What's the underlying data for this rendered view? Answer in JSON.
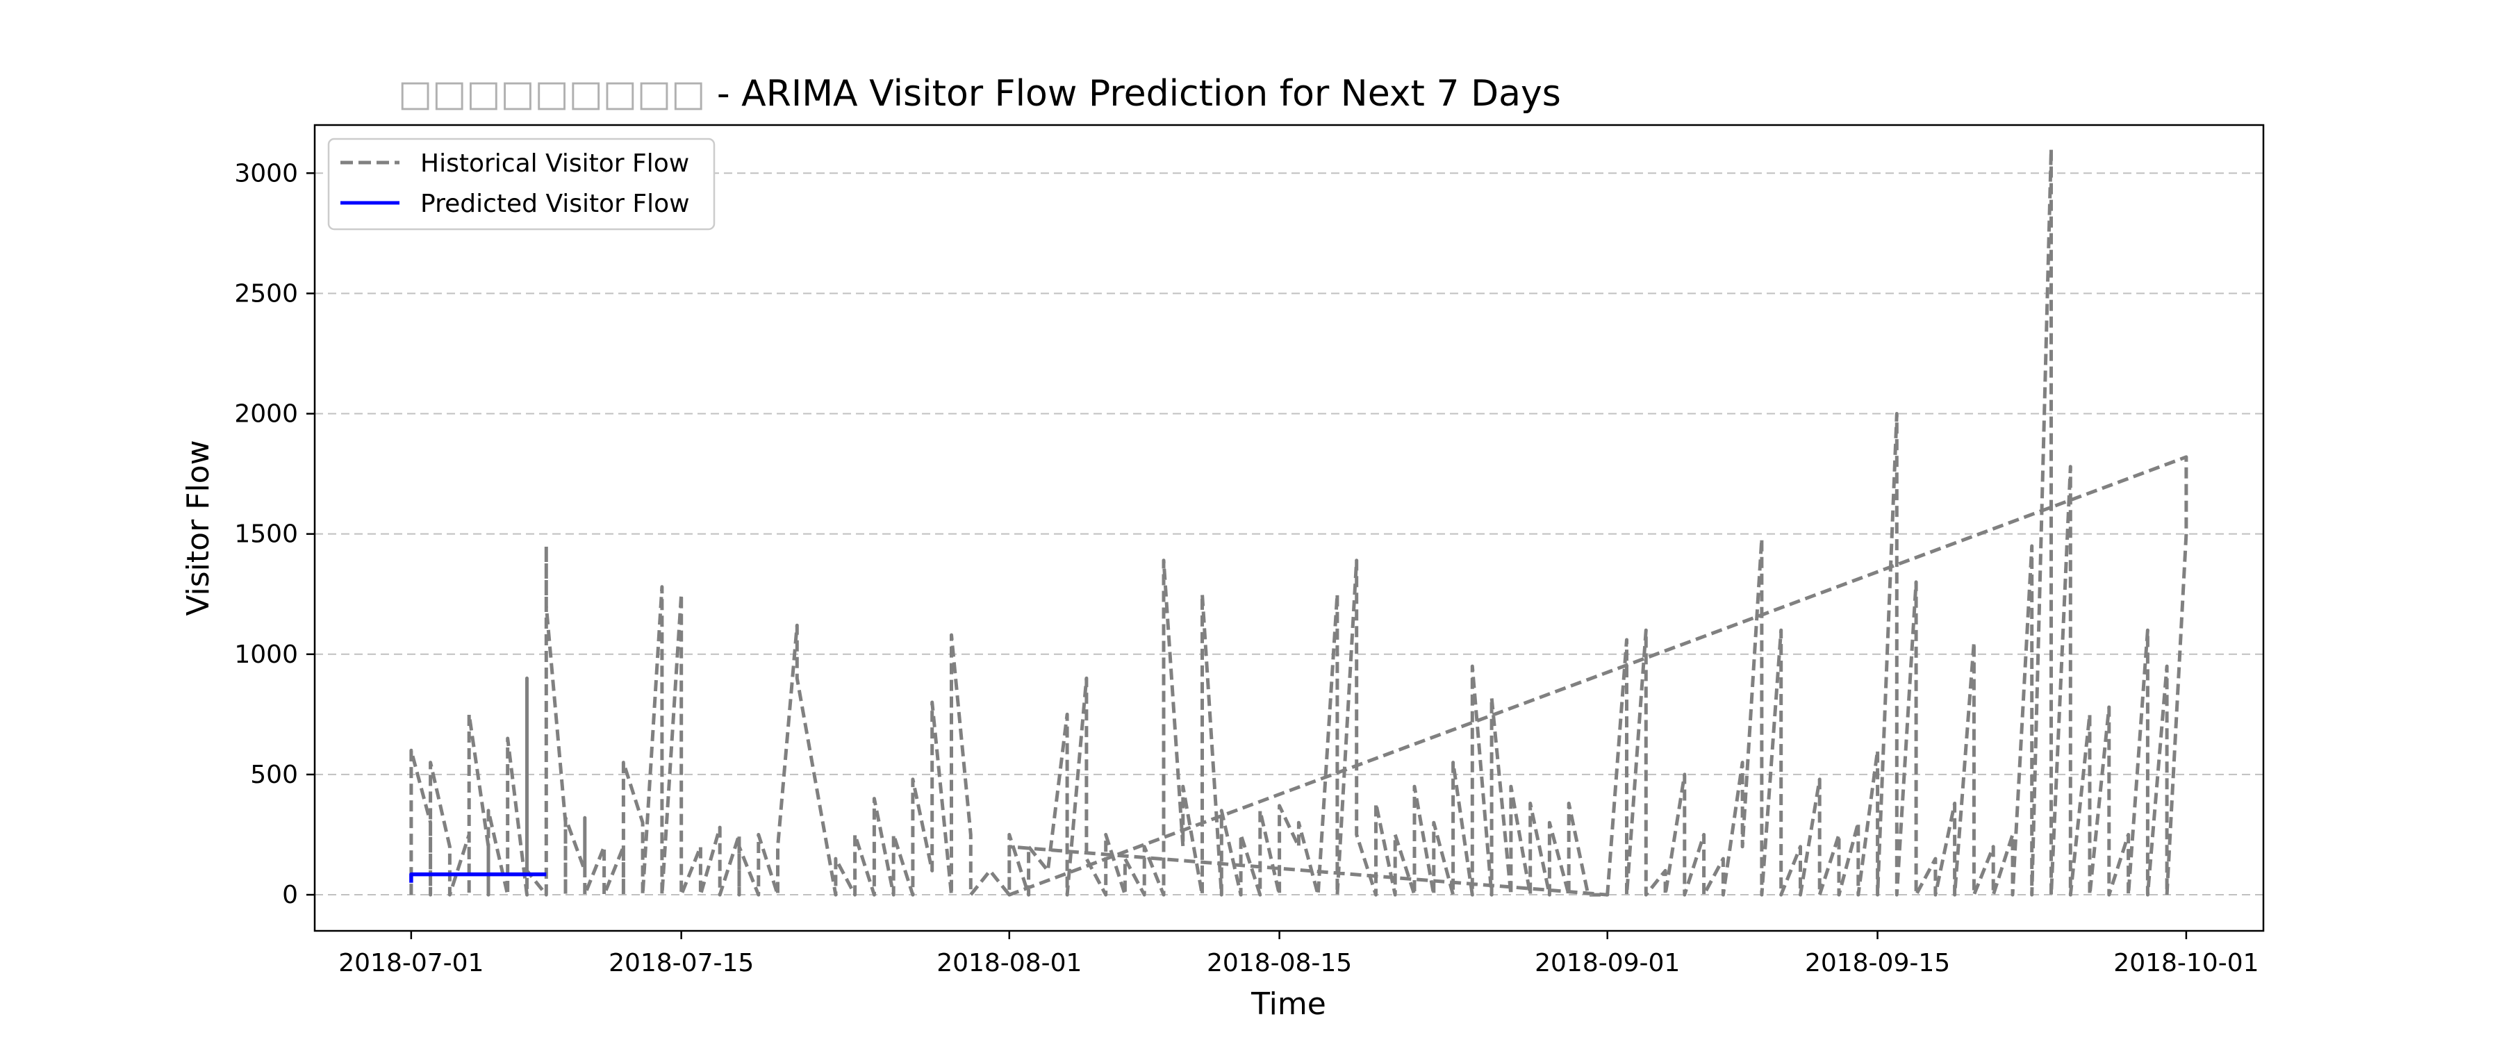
{
  "chart_data": {
    "type": "line",
    "title_glyphs": "□□□□□□□□□",
    "title_suffix": " - ARIMA Visitor Flow Prediction for Next 7 Days",
    "xlabel": "Time",
    "ylabel": "Visitor Flow",
    "x_axis_type": "date",
    "xlim": [
      "2018-06-26",
      "2018-10-05"
    ],
    "ylim": [
      -150,
      3200
    ],
    "x_ticks": [
      "2018-07-01",
      "2018-07-15",
      "2018-08-01",
      "2018-08-15",
      "2018-09-01",
      "2018-09-15",
      "2018-10-01"
    ],
    "y_ticks": [
      0,
      500,
      1000,
      1500,
      2000,
      2500,
      3000
    ],
    "grid": {
      "y": true,
      "x": false,
      "style": "dashed"
    },
    "legend_position": "top-left",
    "series": [
      {
        "name": "Historical Visitor Flow",
        "color": "#808080",
        "style": "dashed",
        "points": [
          [
            "2018-07-01",
            0
          ],
          [
            "2018-07-01",
            380
          ],
          [
            "2018-07-01",
            600
          ],
          [
            "2018-07-02",
            300
          ],
          [
            "2018-07-02",
            0
          ],
          [
            "2018-07-02",
            300
          ],
          [
            "2018-07-02",
            550
          ],
          [
            "2018-07-03",
            200
          ],
          [
            "2018-07-03",
            0
          ],
          [
            "2018-07-04",
            250
          ],
          [
            "2018-07-04",
            0
          ],
          [
            "2018-07-04",
            400
          ],
          [
            "2018-07-04",
            750
          ],
          [
            "2018-07-05",
            200
          ],
          [
            "2018-07-05",
            0
          ],
          [
            "2018-07-05",
            350
          ],
          [
            "2018-07-06",
            0
          ],
          [
            "2018-07-06",
            400
          ],
          [
            "2018-07-06",
            650
          ],
          [
            "2018-07-07",
            0
          ],
          [
            "2018-07-07",
            300
          ],
          [
            "2018-07-07",
            900
          ],
          [
            "2018-07-07",
            100
          ],
          [
            "2018-07-08",
            0
          ],
          [
            "2018-07-08",
            1450
          ],
          [
            "2018-07-08",
            1200
          ],
          [
            "2018-07-09",
            300
          ],
          [
            "2018-07-09",
            0
          ],
          [
            "2018-07-09",
            320
          ],
          [
            "2018-07-10",
            100
          ],
          [
            "2018-07-10",
            320
          ],
          [
            "2018-07-10",
            0
          ],
          [
            "2018-07-11",
            200
          ],
          [
            "2018-07-11",
            0
          ],
          [
            "2018-07-12",
            200
          ],
          [
            "2018-07-12",
            0
          ],
          [
            "2018-07-12",
            550
          ],
          [
            "2018-07-13",
            300
          ],
          [
            "2018-07-13",
            0
          ],
          [
            "2018-07-14",
            1280
          ],
          [
            "2018-07-14",
            500
          ],
          [
            "2018-07-14",
            0
          ],
          [
            "2018-07-15",
            1250
          ],
          [
            "2018-07-15",
            300
          ],
          [
            "2018-07-15",
            0
          ],
          [
            "2018-07-16",
            200
          ],
          [
            "2018-07-16",
            0
          ],
          [
            "2018-07-17",
            280
          ],
          [
            "2018-07-17",
            0
          ],
          [
            "2018-07-18",
            250
          ],
          [
            "2018-07-18",
            0
          ],
          [
            "2018-07-18",
            200
          ],
          [
            "2018-07-19",
            0
          ],
          [
            "2018-07-19",
            250
          ],
          [
            "2018-07-20",
            0
          ],
          [
            "2018-07-20",
            200
          ],
          [
            "2018-07-21",
            1120
          ],
          [
            "2018-07-21",
            900
          ],
          [
            "2018-07-23",
            0
          ],
          [
            "2018-07-23",
            150
          ],
          [
            "2018-07-24",
            0
          ],
          [
            "2018-07-24",
            250
          ],
          [
            "2018-07-25",
            0
          ],
          [
            "2018-07-25",
            400
          ],
          [
            "2018-07-26",
            0
          ],
          [
            "2018-07-26",
            250
          ],
          [
            "2018-07-27",
            0
          ],
          [
            "2018-07-27",
            480
          ],
          [
            "2018-07-28",
            100
          ],
          [
            "2018-07-28",
            800
          ],
          [
            "2018-07-29",
            0
          ],
          [
            "2018-07-29",
            1080
          ],
          [
            "2018-07-30",
            250
          ],
          [
            "2018-07-30",
            0
          ],
          [
            "2018-07-31",
            100
          ],
          [
            "2018-08-01",
            0
          ],
          [
            "2018-08-01",
            250
          ],
          [
            "2018-08-02",
            0
          ],
          [
            "2018-08-02",
            200
          ],
          [
            "2018-08-03",
            100
          ],
          [
            "2018-08-04",
            750
          ],
          [
            "2018-08-04",
            0
          ],
          [
            "2018-08-05",
            900
          ],
          [
            "2018-08-05",
            150
          ],
          [
            "2018-08-06",
            0
          ],
          [
            "2018-08-06",
            250
          ],
          [
            "2018-08-07",
            0
          ],
          [
            "2018-08-07",
            150
          ],
          [
            "2018-08-08",
            0
          ],
          [
            "2018-08-08",
            200
          ],
          [
            "2018-08-09",
            0
          ],
          [
            "2018-08-09",
            1390
          ],
          [
            "2018-08-10",
            200
          ],
          [
            "2018-08-10",
            450
          ],
          [
            "2018-08-11",
            0
          ],
          [
            "2018-08-11",
            1250
          ],
          [
            "2018-08-12",
            0
          ],
          [
            "2018-08-12",
            350
          ],
          [
            "2018-08-13",
            0
          ],
          [
            "2018-08-13",
            250
          ],
          [
            "2018-08-14",
            0
          ],
          [
            "2018-08-14",
            350
          ],
          [
            "2018-08-15",
            0
          ],
          [
            "2018-08-15",
            370
          ],
          [
            "2018-08-16",
            200
          ],
          [
            "2018-08-16",
            300
          ],
          [
            "2018-08-17",
            0
          ],
          [
            "2018-08-18",
            1250
          ],
          [
            "2018-08-18",
            0
          ],
          [
            "2018-08-19",
            1390
          ],
          [
            "2018-08-19",
            250
          ],
          [
            "2018-08-20",
            0
          ],
          [
            "2018-08-20",
            380
          ],
          [
            "2018-08-21",
            0
          ],
          [
            "2018-08-21",
            250
          ],
          [
            "2018-08-22",
            0
          ],
          [
            "2018-08-22",
            450
          ],
          [
            "2018-08-23",
            0
          ],
          [
            "2018-08-23",
            300
          ],
          [
            "2018-08-24",
            0
          ],
          [
            "2018-08-24",
            550
          ],
          [
            "2018-08-25",
            0
          ],
          [
            "2018-08-25",
            950
          ],
          [
            "2018-08-26",
            0
          ],
          [
            "2018-08-26",
            820
          ],
          [
            "2018-08-27",
            0
          ],
          [
            "2018-08-27",
            450
          ],
          [
            "2018-08-28",
            0
          ],
          [
            "2018-08-28",
            380
          ],
          [
            "2018-08-29",
            0
          ],
          [
            "2018-08-29",
            300
          ],
          [
            "2018-08-30",
            0
          ],
          [
            "2018-08-30",
            380
          ],
          [
            "2018-08-31",
            0
          ],
          [
            "2018-09-01",
            0
          ],
          [
            "2018-09-02",
            1060
          ],
          [
            "2018-09-02",
            0
          ],
          [
            "2018-09-03",
            1100
          ],
          [
            "2018-09-03",
            0
          ],
          [
            "2018-09-04",
            100
          ],
          [
            "2018-09-04",
            0
          ],
          [
            "2018-09-05",
            500
          ],
          [
            "2018-09-05",
            0
          ],
          [
            "2018-09-06",
            250
          ],
          [
            "2018-09-06",
            0
          ],
          [
            "2018-09-07",
            150
          ],
          [
            "2018-09-07",
            0
          ],
          [
            "2018-09-08",
            550
          ],
          [
            "2018-09-08",
            200
          ],
          [
            "2018-09-09",
            1480
          ],
          [
            "2018-09-09",
            0
          ],
          [
            "2018-09-10",
            1100
          ],
          [
            "2018-09-10",
            0
          ],
          [
            "2018-09-11",
            200
          ],
          [
            "2018-09-11",
            0
          ],
          [
            "2018-09-12",
            480
          ],
          [
            "2018-09-12",
            0
          ],
          [
            "2018-09-13",
            250
          ],
          [
            "2018-09-13",
            0
          ],
          [
            "2018-09-14",
            300
          ],
          [
            "2018-09-14",
            0
          ],
          [
            "2018-09-15",
            600
          ],
          [
            "2018-09-15",
            0
          ],
          [
            "2018-09-16",
            2000
          ],
          [
            "2018-09-16",
            0
          ],
          [
            "2018-09-17",
            1300
          ],
          [
            "2018-09-17",
            0
          ],
          [
            "2018-09-18",
            150
          ],
          [
            "2018-09-18",
            0
          ],
          [
            "2018-09-19",
            380
          ],
          [
            "2018-09-19",
            0
          ],
          [
            "2018-09-20",
            1050
          ],
          [
            "2018-09-20",
            0
          ],
          [
            "2018-09-21",
            200
          ],
          [
            "2018-09-21",
            0
          ],
          [
            "2018-09-22",
            250
          ],
          [
            "2018-09-22",
            0
          ],
          [
            "2018-09-23",
            1450
          ],
          [
            "2018-09-23",
            0
          ],
          [
            "2018-09-24",
            3100
          ],
          [
            "2018-09-24",
            0
          ],
          [
            "2018-09-25",
            1780
          ],
          [
            "2018-09-25",
            0
          ],
          [
            "2018-09-26",
            750
          ],
          [
            "2018-09-26",
            0
          ],
          [
            "2018-09-27",
            780
          ],
          [
            "2018-09-27",
            0
          ],
          [
            "2018-09-28",
            250
          ],
          [
            "2018-09-28",
            0
          ],
          [
            "2018-09-29",
            1100
          ],
          [
            "2018-09-29",
            0
          ],
          [
            "2018-09-30",
            950
          ],
          [
            "2018-09-30",
            0
          ],
          [
            "2018-10-01",
            1500
          ],
          [
            "2018-10-01",
            1820
          ],
          [
            "2018-08-01",
            0
          ],
          [
            "2018-08-01",
            200
          ],
          [
            "2018-09-01",
            0
          ]
        ]
      },
      {
        "name": "Predicted Visitor Flow",
        "color": "#0000ff",
        "style": "solid",
        "points": [
          [
            "2018-07-01",
            50
          ],
          [
            "2018-07-01",
            85
          ],
          [
            "2018-07-08",
            85
          ]
        ]
      }
    ]
  }
}
